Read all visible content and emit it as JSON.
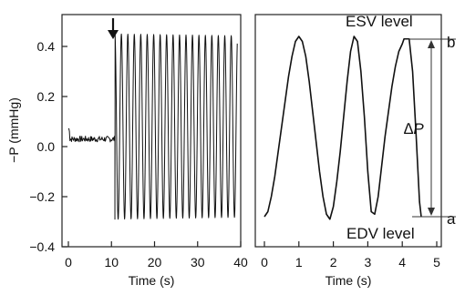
{
  "chart_data": [
    {
      "type": "line",
      "id": "left",
      "ylabel": "−P (mmHg)",
      "xlabel": "Time (s)",
      "xlim": [
        0,
        40
      ],
      "ylim": [
        -0.4,
        0.45
      ],
      "x_ticks": [
        0,
        10,
        20,
        30,
        40
      ],
      "y_ticks": [
        0.4,
        0.2,
        0.0,
        -0.2,
        -0.4
      ],
      "y_tick_labels": [
        "0.4",
        "0.2",
        "0.0",
        "−0.2",
        "−0.4"
      ],
      "annotations": [
        {
          "text": "↓",
          "x": 10.5,
          "y": 0.45
        }
      ],
      "segments": [
        {
          "name": "baseline",
          "x_start": 0,
          "x_end": 10.8,
          "mean": 0.03,
          "noise_amplitude": 0.012
        },
        {
          "name": "oscillation",
          "x_start": 10.8,
          "x_end": 39.2,
          "min": -0.29,
          "max": 0.45,
          "period_s": 1.5,
          "cycles": 19
        }
      ]
    },
    {
      "type": "line",
      "id": "right",
      "xlabel": "Time (s)",
      "xlim": [
        0,
        5
      ],
      "ylim": [
        -0.4,
        0.45
      ],
      "x_ticks": [
        0,
        1,
        2,
        3,
        4,
        5
      ],
      "points": [
        [
          0.0,
          -0.28
        ],
        [
          0.1,
          -0.26
        ],
        [
          0.2,
          -0.2
        ],
        [
          0.3,
          -0.12
        ],
        [
          0.4,
          -0.02
        ],
        [
          0.5,
          0.08
        ],
        [
          0.6,
          0.18
        ],
        [
          0.7,
          0.28
        ],
        [
          0.8,
          0.36
        ],
        [
          0.9,
          0.42
        ],
        [
          1.0,
          0.44
        ],
        [
          1.1,
          0.42
        ],
        [
          1.2,
          0.36
        ],
        [
          1.3,
          0.26
        ],
        [
          1.4,
          0.14
        ],
        [
          1.5,
          0.02
        ],
        [
          1.6,
          -0.1
        ],
        [
          1.7,
          -0.2
        ],
        [
          1.8,
          -0.27
        ],
        [
          1.9,
          -0.29
        ],
        [
          2.0,
          -0.24
        ],
        [
          2.1,
          -0.14
        ],
        [
          2.2,
          -0.02
        ],
        [
          2.3,
          0.12
        ],
        [
          2.4,
          0.26
        ],
        [
          2.5,
          0.38
        ],
        [
          2.6,
          0.44
        ],
        [
          2.7,
          0.42
        ],
        [
          2.8,
          0.3
        ],
        [
          2.9,
          0.12
        ],
        [
          3.0,
          -0.1
        ],
        [
          3.1,
          -0.26
        ],
        [
          3.2,
          -0.27
        ],
        [
          3.3,
          -0.2
        ],
        [
          3.4,
          -0.08
        ],
        [
          3.5,
          0.04
        ],
        [
          3.6,
          0.14
        ],
        [
          3.7,
          0.24
        ],
        [
          3.8,
          0.32
        ],
        [
          3.9,
          0.38
        ],
        [
          4.0,
          0.41
        ],
        [
          4.05,
          0.43
        ],
        [
          4.2,
          0.43
        ],
        [
          4.3,
          0.3
        ],
        [
          4.4,
          0.05
        ],
        [
          4.5,
          -0.22
        ],
        [
          4.55,
          -0.28
        ]
      ],
      "annotations": [
        {
          "text": "ESV level"
        },
        {
          "text": "EDV level"
        },
        {
          "text": "b"
        },
        {
          "text": "a"
        },
        {
          "text": "∆P"
        }
      ],
      "esv_level": 0.43,
      "edv_level": -0.28
    }
  ]
}
